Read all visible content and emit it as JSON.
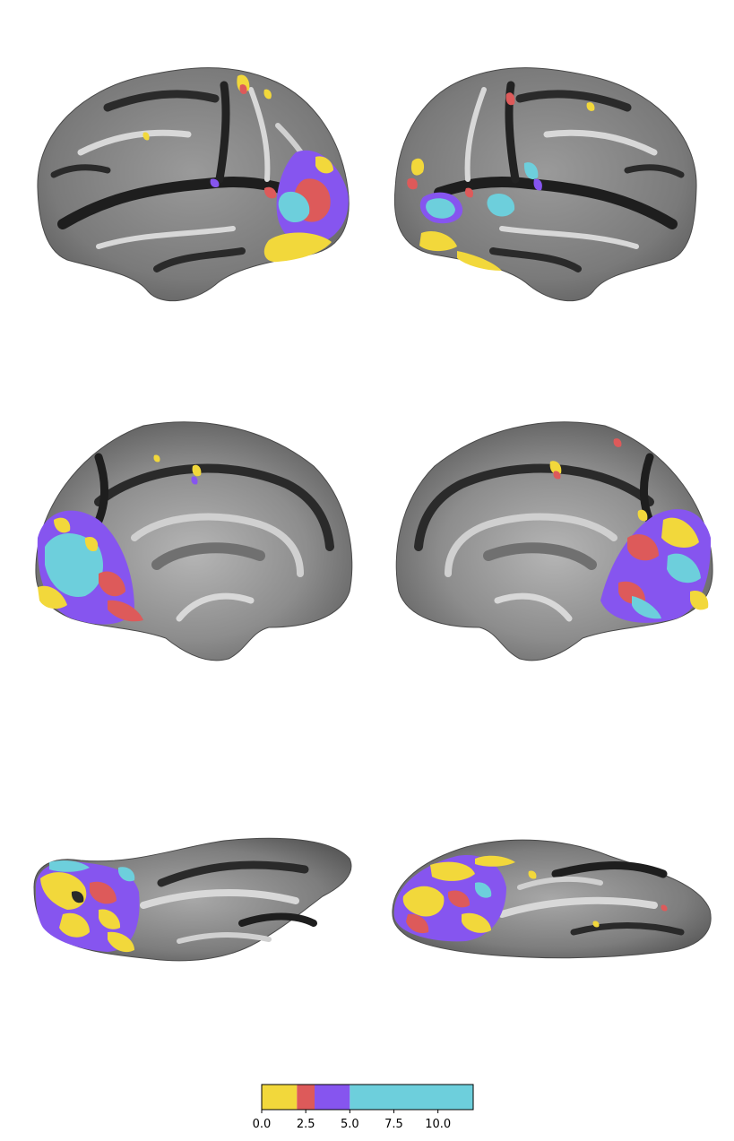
{
  "colorbar": {
    "segments": [
      {
        "start": 0.0,
        "end": 2.0,
        "color": "#f2d83b"
      },
      {
        "start": 2.0,
        "end": 3.0,
        "color": "#dd5a5a"
      },
      {
        "start": 3.0,
        "end": 5.0,
        "color": "#8655ef"
      },
      {
        "start": 5.0,
        "end": 12.0,
        "color": "#6dcfdc"
      }
    ],
    "range": [
      0,
      12
    ],
    "ticks": [
      {
        "value": 0.0,
        "label": "0.0"
      },
      {
        "value": 2.5,
        "label": "2.5"
      },
      {
        "value": 5.0,
        "label": "5.0"
      },
      {
        "value": 7.5,
        "label": "7.5"
      },
      {
        "value": 10.0,
        "label": "10.0"
      }
    ]
  },
  "colors": {
    "sulcus_dark": "#1e1e1e",
    "gyrus_light": "#d8d8d8",
    "surface_mid": "#8a8a8a"
  }
}
